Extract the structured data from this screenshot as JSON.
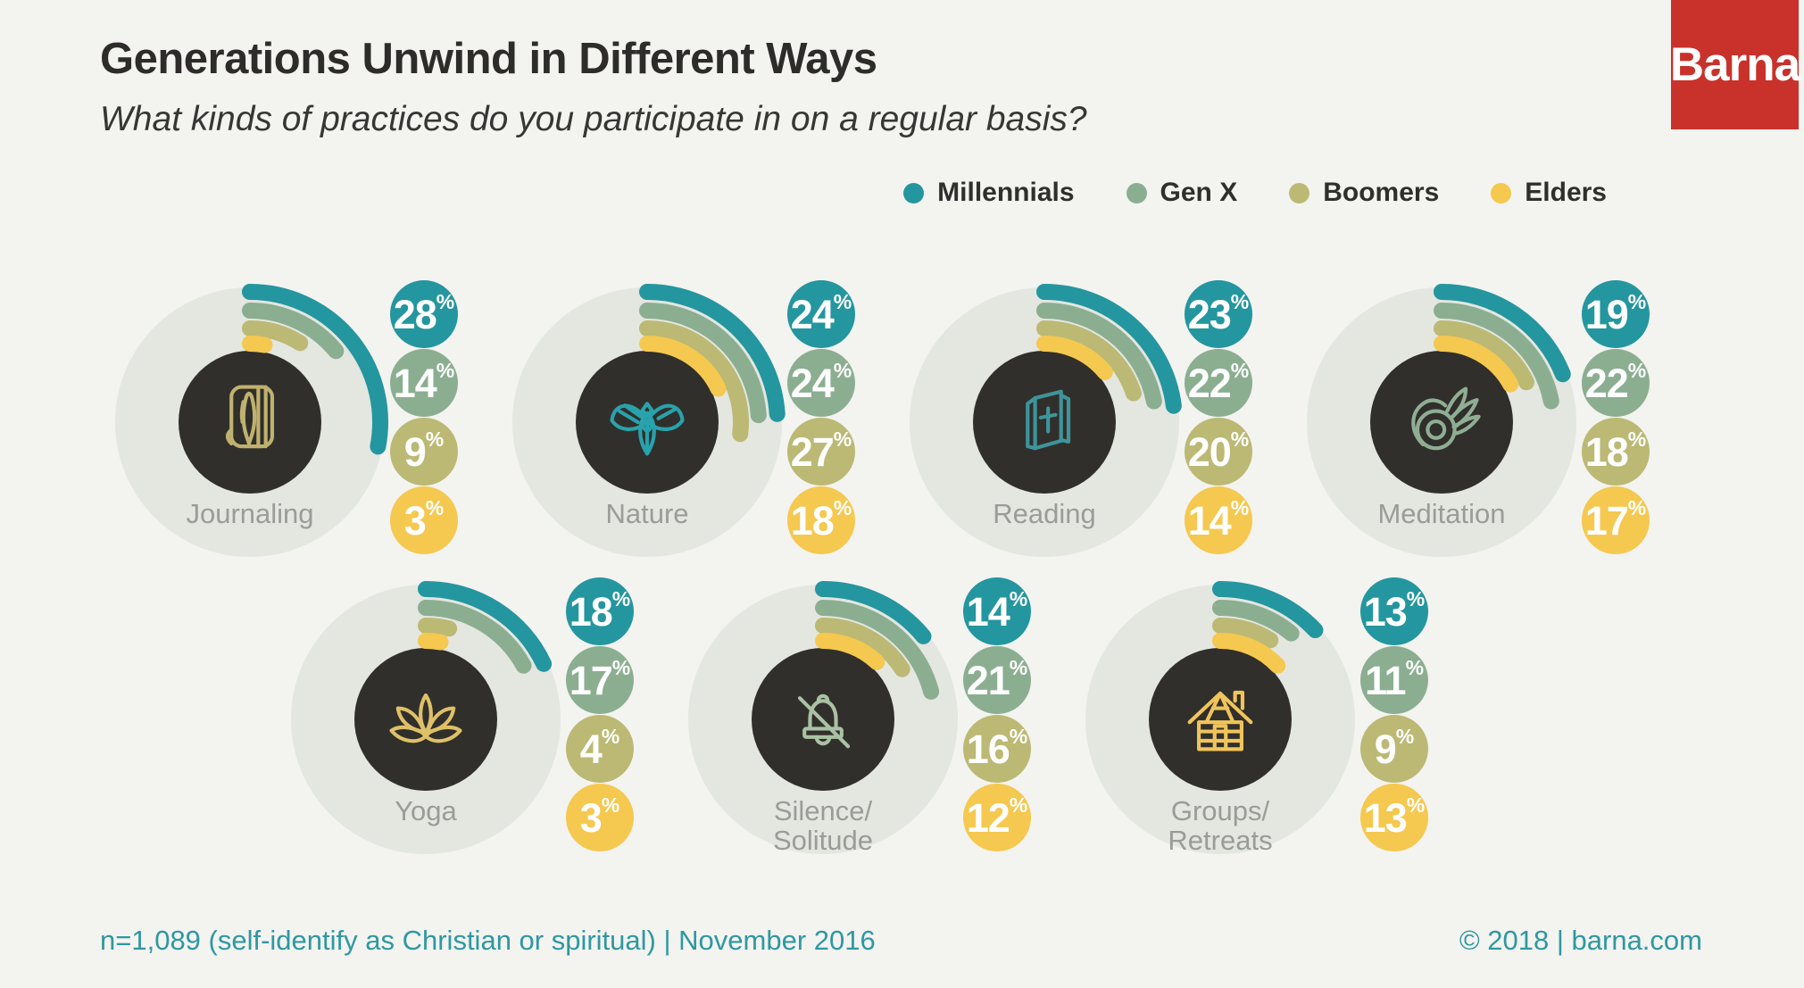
{
  "header": {
    "title": "Generations Unwind in Different Ways",
    "subtitle": "What kinds of practices do you participate in on a regular basis?",
    "logo_text": "Barna"
  },
  "legend": {
    "items": [
      {
        "label": "Millennials",
        "color": "#24969F"
      },
      {
        "label": "Gen X",
        "color": "#8BAE91"
      },
      {
        "label": "Boomers",
        "color": "#BBB974"
      },
      {
        "label": "Elders",
        "color": "#F5C84F"
      }
    ]
  },
  "chart_data": {
    "type": "radial-bar",
    "title": "Generations Unwind in Different Ways",
    "question": "What kinds of practices do you participate in on a regular basis?",
    "series_labels": [
      "Millennials",
      "Gen X",
      "Boomers",
      "Elders"
    ],
    "unit": "%",
    "scale": {
      "min": 0,
      "max": 100,
      "full_circle_degrees": 360,
      "start_angle": "12 o'clock",
      "direction": "clockwise"
    },
    "practices": [
      {
        "label": "Journaling",
        "label_lines": [
          "Journaling"
        ],
        "icon": "journal-pen-icon",
        "values": [
          28,
          14,
          9,
          3
        ]
      },
      {
        "label": "Nature",
        "label_lines": [
          "Nature"
        ],
        "icon": "leaves-icon",
        "values": [
          24,
          24,
          27,
          18
        ]
      },
      {
        "label": "Reading",
        "label_lines": [
          "Reading"
        ],
        "icon": "booklet-cross-icon",
        "values": [
          23,
          22,
          20,
          14
        ]
      },
      {
        "label": "Meditation",
        "label_lines": [
          "Meditation"
        ],
        "icon": "mudra-hand-icon",
        "values": [
          19,
          22,
          18,
          17
        ]
      },
      {
        "label": "Yoga",
        "label_lines": [
          "Yoga"
        ],
        "icon": "lotus-icon",
        "values": [
          18,
          17,
          4,
          3
        ]
      },
      {
        "label": "Silence/Solitude",
        "label_lines": [
          "Silence/",
          "Solitude"
        ],
        "icon": "bell-slash-icon",
        "values": [
          14,
          21,
          16,
          12
        ]
      },
      {
        "label": "Groups/Retreats",
        "label_lines": [
          "Groups/",
          "Retreats"
        ],
        "icon": "cabin-icon",
        "values": [
          13,
          11,
          9,
          13
        ]
      }
    ]
  },
  "footer": {
    "left_text": "n=1,089 (self-identify as Christian or spiritual) | November 2016",
    "right_text": "© 2018 | barna.com"
  },
  "colors": {
    "background": "#F3F3F0",
    "circle_bg": "#E4E6E0",
    "circle_center": "#312F2B",
    "millennials": "#24969F",
    "gen_x": "#8BAE91",
    "boomers": "#BBB974",
    "elders": "#F5C84F",
    "accent_text": "#2E98A1",
    "label_gray": "#9A9C97",
    "logo_red": "#C9312B"
  },
  "icon_colors": {
    "journal-pen-icon": "#BFB26F",
    "leaves-icon": "#28A2AC",
    "booklet-cross-icon": "#3E949B",
    "mudra-hand-icon": "#8FAE94",
    "lotus-icon": "#DEC068",
    "bell-slash-icon": "#A9C2A4",
    "cabin-icon": "#F0C45C"
  }
}
